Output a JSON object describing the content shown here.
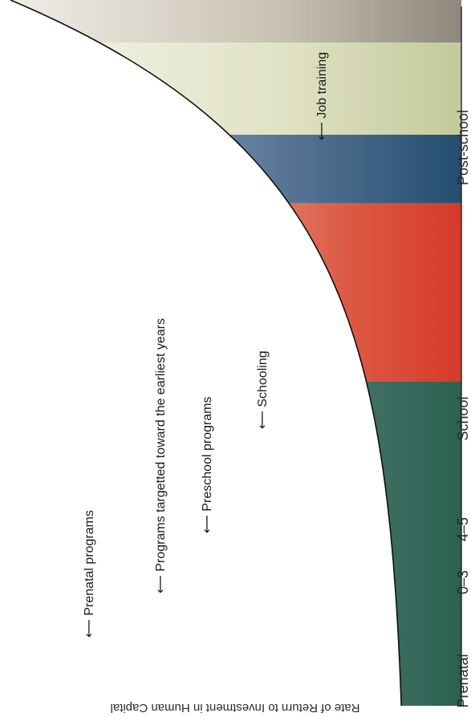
{
  "chart_data": {
    "type": "area",
    "ylabel": "Rate of Return to Investment in Human Capital",
    "xlabel": "",
    "categories": [
      "Prenatal",
      "0–3",
      "4–5",
      "School",
      "Post-school"
    ],
    "annotations": [
      "Prenatal programs",
      "Programs targetted toward the earliest years",
      "Preschool programs",
      "Schooling",
      "Job training"
    ],
    "colors": {
      "prenatal": "#8f877c",
      "age_0_3": "#cfd3a6",
      "age_4_5": "#2d5878",
      "school": "#d9402f",
      "post_school": "#2c6456"
    },
    "curve": "decreasing, convex"
  }
}
